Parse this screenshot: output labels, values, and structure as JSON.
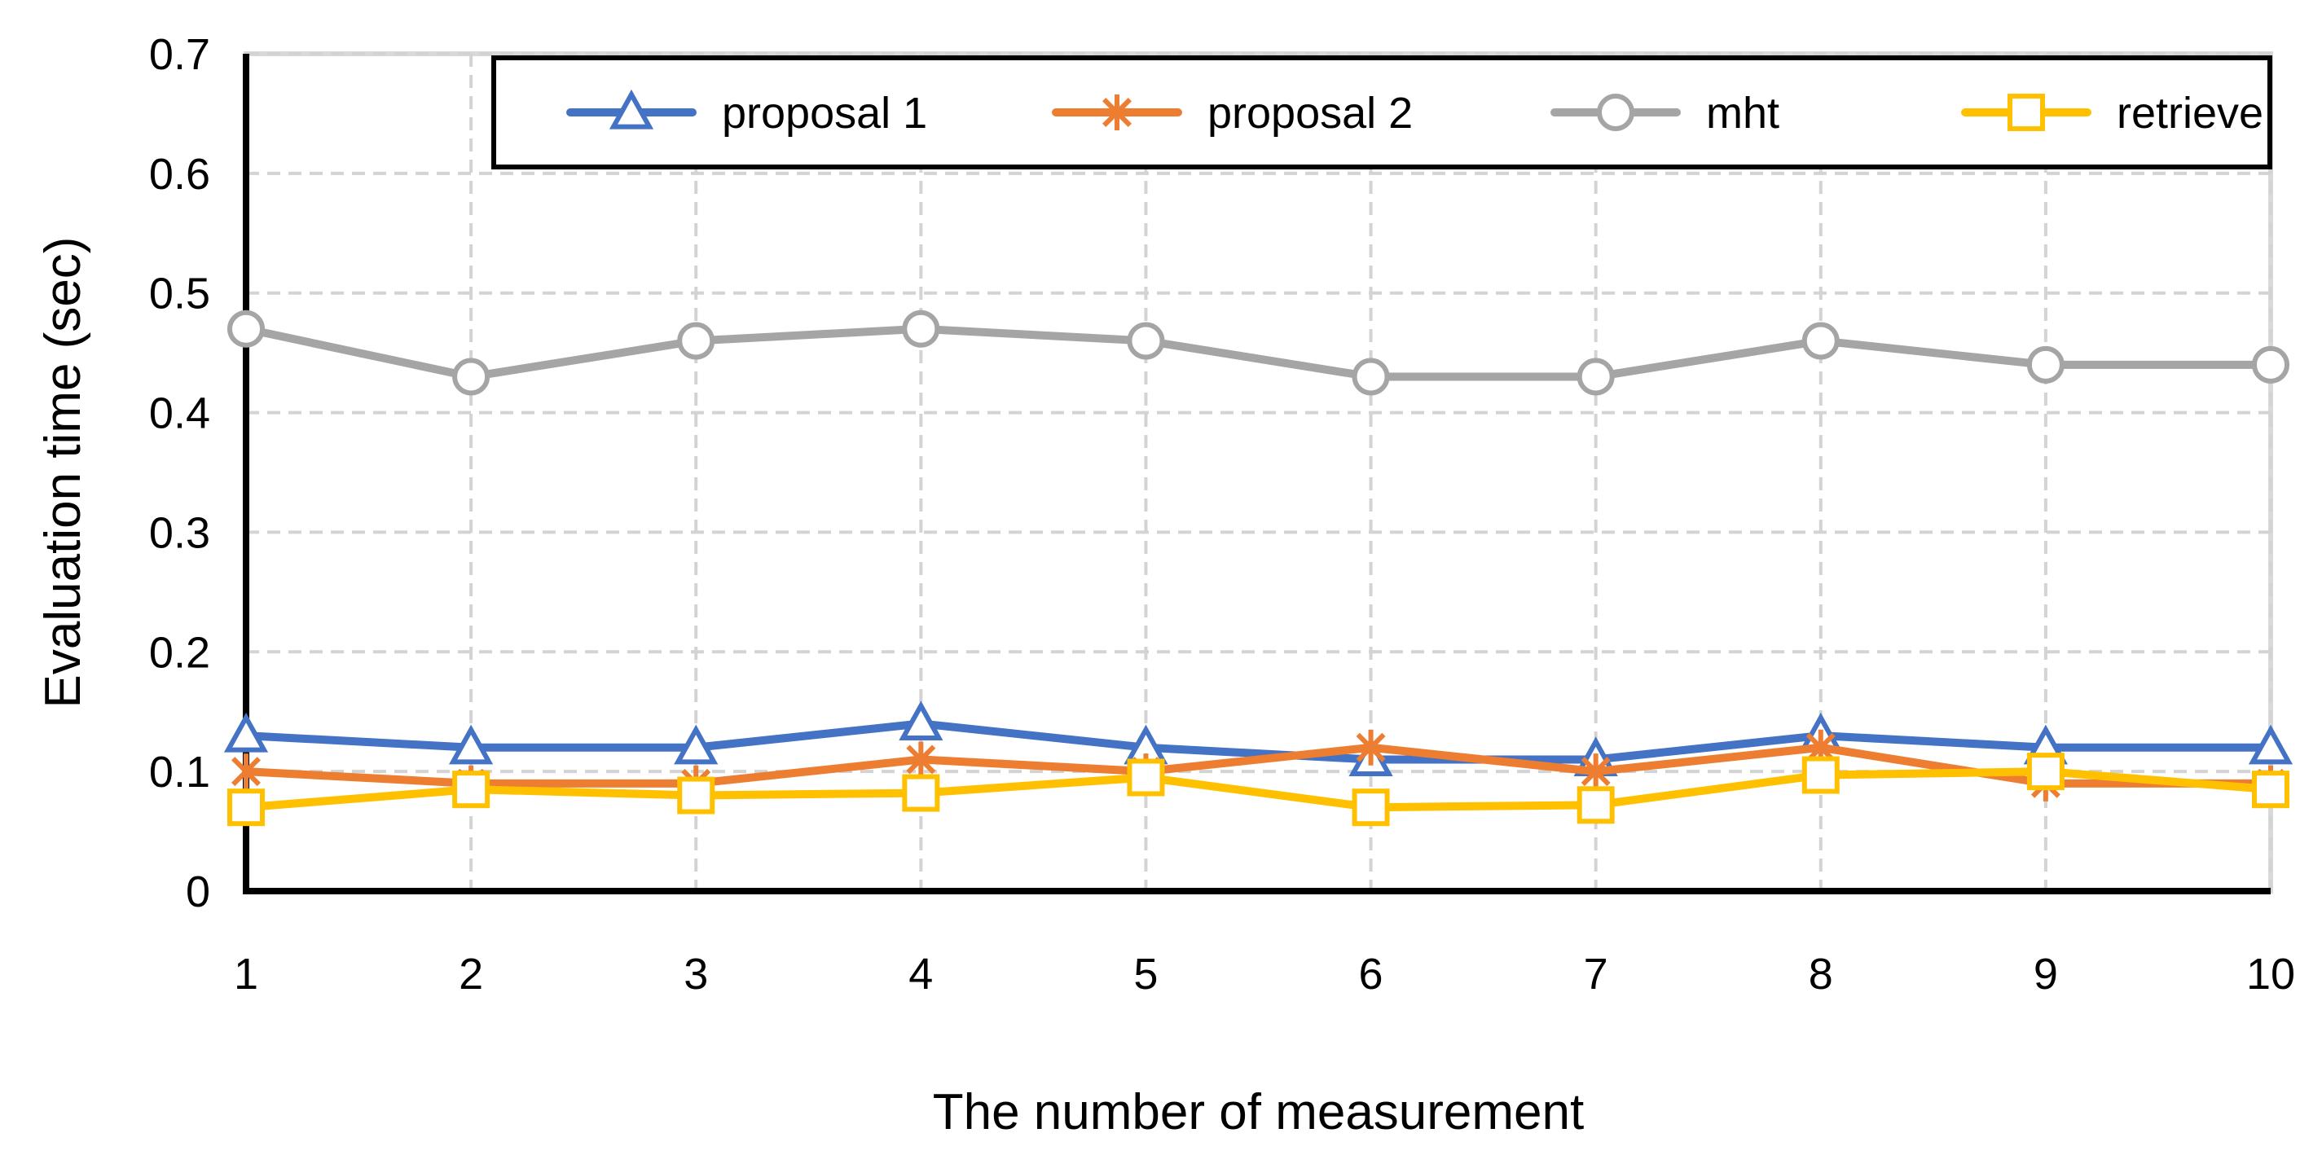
{
  "chart_data": {
    "type": "line",
    "title": "",
    "xlabel": "The number of measurement",
    "ylabel": "Evaluation time (sec)",
    "categories": [
      "1",
      "2",
      "3",
      "4",
      "5",
      "6",
      "7",
      "8",
      "9",
      "10"
    ],
    "ylim": [
      0,
      0.7
    ],
    "yticks": [
      "0",
      "0.1",
      "0.2",
      "0.3",
      "0.4",
      "0.5",
      "0.6",
      "0.7"
    ],
    "grid": true,
    "legend_position": "top",
    "series": [
      {
        "name": "proposal 1",
        "color": "#4472C4",
        "marker": "triangle",
        "values": [
          0.13,
          0.12,
          0.12,
          0.14,
          0.12,
          0.11,
          0.11,
          0.13,
          0.12,
          0.12
        ]
      },
      {
        "name": "proposal 2",
        "color": "#ED7D31",
        "marker": "asterisk",
        "values": [
          0.1,
          0.09,
          0.09,
          0.11,
          0.1,
          0.12,
          0.1,
          0.12,
          0.09,
          0.09
        ]
      },
      {
        "name": "mht",
        "color": "#A5A5A5",
        "marker": "circle",
        "values": [
          0.47,
          0.43,
          0.46,
          0.47,
          0.46,
          0.43,
          0.43,
          0.46,
          0.44,
          0.44
        ]
      },
      {
        "name": "retrieve",
        "color": "#FFC000",
        "marker": "square",
        "values": [
          0.07,
          0.085,
          0.08,
          0.082,
          0.095,
          0.07,
          0.072,
          0.097,
          0.1,
          0.085
        ]
      }
    ]
  }
}
